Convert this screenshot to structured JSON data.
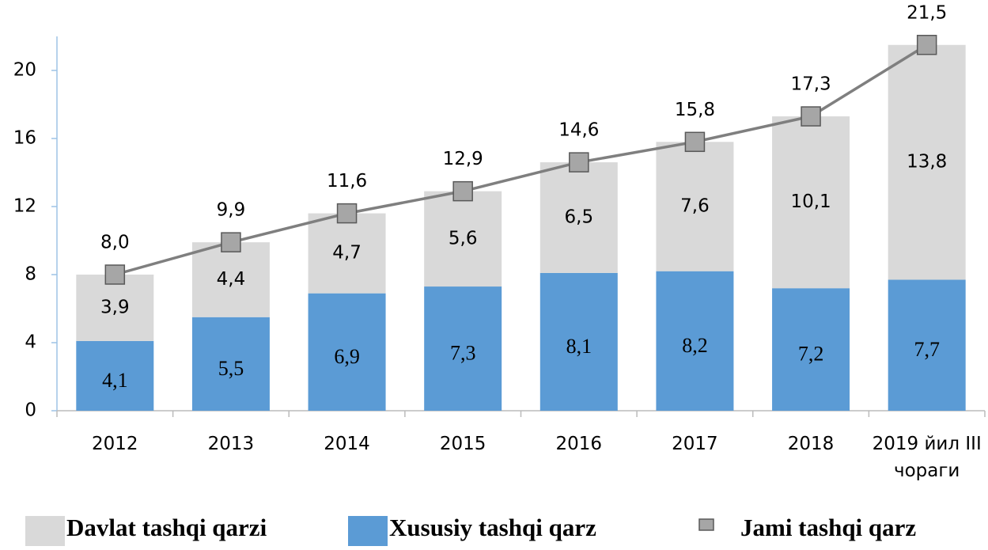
{
  "chart_data": {
    "type": "bar",
    "categories": [
      "2012",
      "2013",
      "2014",
      "2015",
      "2016",
      "2017",
      "2018",
      "2019 йил III чораги"
    ],
    "series": [
      {
        "name": "Xususiy tashqi qarz",
        "type": "bar",
        "color": "#5b9bd5",
        "values": [
          4.1,
          5.5,
          6.9,
          7.3,
          8.1,
          8.2,
          7.2,
          7.7
        ],
        "value_labels": [
          "4,1",
          "5,5",
          "6,9",
          "7,3",
          "8,1",
          "8,2",
          "7,2",
          "7,7"
        ]
      },
      {
        "name": "Davlat tashqi qarzi",
        "type": "bar",
        "color": "#d9d9d9",
        "values": [
          3.9,
          4.4,
          4.7,
          5.6,
          6.5,
          7.6,
          10.1,
          13.8
        ],
        "value_labels": [
          "3,9",
          "4,4",
          "4,7",
          "5,6",
          "6,5",
          "7,6",
          "10,1",
          "13,8"
        ]
      },
      {
        "name": "Jami tashqi qarz",
        "type": "line",
        "color": "#7f7f7f",
        "values": [
          8.0,
          9.9,
          11.6,
          12.9,
          14.6,
          15.8,
          17.3,
          21.5
        ],
        "value_labels": [
          "8,0",
          "9,9",
          "11,6",
          "12,9",
          "14,6",
          "15,8",
          "17,3",
          "21,5"
        ]
      }
    ],
    "ylim": [
      0,
      22
    ],
    "yticks": [
      0,
      4,
      8,
      12,
      16,
      20
    ]
  }
}
